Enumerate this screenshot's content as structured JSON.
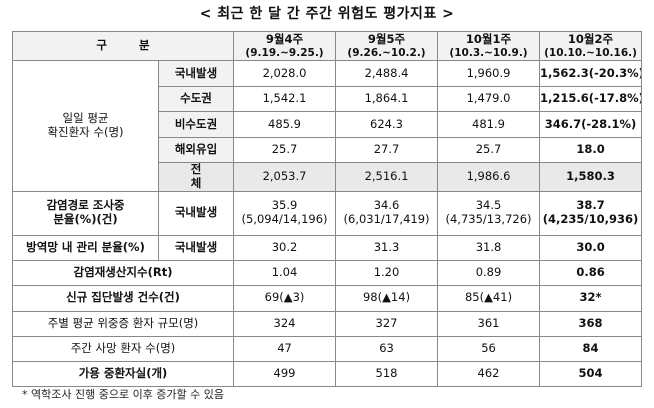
{
  "title": "< 최근 한 달 간 주간 위험도 평가지표 >",
  "header": {
    "gubun": "구 분",
    "weeks": [
      {
        "main": "9월4주",
        "sub": "(9.19.~9.25.)"
      },
      {
        "main": "9월5주",
        "sub": "(9.26.~10.2.)"
      },
      {
        "main": "10월1주",
        "sub": "(10.3.~10.9.)"
      },
      {
        "main": "10월2주",
        "sub": "(10.10.~10.16.)"
      }
    ]
  },
  "rows": {
    "daily_avg_label": [
      "일일 평균",
      "확진환자 수(명)"
    ],
    "domestic": {
      "label": "국내발생",
      "values": [
        "2,028.0",
        "2,488.4",
        "1,960.9",
        "1,562.3(-20.3%)"
      ]
    },
    "capital": {
      "label": "수도권",
      "values": [
        "1,542.1",
        "1,864.1",
        "1,479.0",
        "1,215.6(-17.8%)"
      ]
    },
    "non_capital": {
      "label": "비수도권",
      "values": [
        "485.9",
        "624.3",
        "481.9",
        "346.7(-28.1%)"
      ]
    },
    "overseas": {
      "label": "해외유입",
      "values": [
        "25.7",
        "27.7",
        "25.7",
        "18.0"
      ]
    },
    "total": {
      "label": "전 체",
      "values": [
        "2,053.7",
        "2,516.1",
        "1,986.6",
        "1,580.3"
      ]
    },
    "investigation": {
      "label": [
        "감염경로 조사중",
        "분율(%)(건)"
      ],
      "sub_label": "국내발생",
      "values": [
        {
          "pct": "35.9",
          "detail": "(5,094/14,196)"
        },
        {
          "pct": "34.6",
          "detail": "(6,031/17,419)"
        },
        {
          "pct": "34.5",
          "detail": "(4,735/13,726)"
        },
        {
          "pct": "38.7",
          "detail": "(4,235/10,936)"
        }
      ]
    },
    "managed": {
      "label": "방역망 내 관리 분율(%)",
      "sub_label": "국내발생",
      "values": [
        "30.2",
        "31.3",
        "31.8",
        "30.0"
      ]
    },
    "rt": {
      "label": "감염재생산지수(Rt)",
      "values": [
        "1.04",
        "1.20",
        "0.89",
        "0.86"
      ]
    },
    "clusters": {
      "label": "신규 집단발생 건수(건)",
      "values": [
        "69(▲3)",
        "98(▲14)",
        "85(▲41)",
        "32*"
      ]
    },
    "severe": {
      "label": "주별 평균 위중증 환자 규모(명)",
      "values": [
        "324",
        "327",
        "361",
        "368"
      ]
    },
    "deaths": {
      "label": "주간 사망 환자 수(명)",
      "values": [
        "47",
        "63",
        "56",
        "84"
      ]
    },
    "beds": {
      "label": "가용 중환자실(개)",
      "values": [
        "499",
        "518",
        "462",
        "504"
      ]
    }
  },
  "footnote": "* 역학조사 진행 중으로 이후 증가할 수 있음"
}
